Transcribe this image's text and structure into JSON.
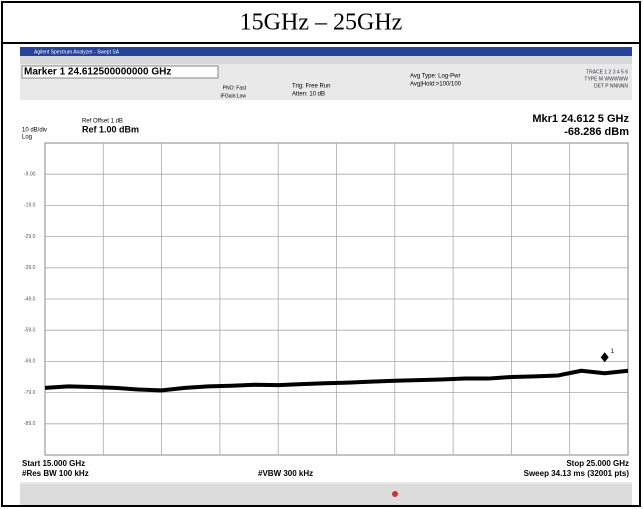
{
  "header": {
    "title": "15GHz – 25GHz"
  },
  "analyzer": {
    "window_title": "Agilent Spectrum Analyzer - Swept SA",
    "marker_field": "Marker 1 24.612500000000 GHz",
    "pno": "PNO: Fast",
    "ifgain": "IFGain:Low",
    "trig": "Trig: Free Run",
    "atten": "Atten: 10 dB",
    "avg_type": "Avg Type: Log-Pwr",
    "avg_hold": "Avg|Hold:>100/100",
    "trace": "TRACE 1 2 3 4 5 6",
    "type_row": "TYPE M WWWWW",
    "det_row": "DET P NNNNN",
    "ref_offset": "Ref Offset 1 dB",
    "ref": "Ref 1.00 dBm",
    "scale": "10 dB/div",
    "log": "Log",
    "mkr_freq": "Mkr1 24.612 5 GHz",
    "mkr_amp": "-68.286 dBm",
    "marker_num": "1",
    "start": "Start 15.000 GHz",
    "stop": "Stop 25.000 GHz",
    "rbw": "#Res BW 100 kHz",
    "vbw": "#VBW 300 kHz",
    "sweep": "Sweep 34.13 ms (32001 pts)"
  },
  "chart_data": {
    "type": "line",
    "xlim": [
      15,
      25
    ],
    "ylim": [
      -99,
      1
    ],
    "yticks": [
      {
        "value": -9,
        "label": "-9.00"
      },
      {
        "value": -19,
        "label": "-19.0"
      },
      {
        "value": -29,
        "label": "-29.0"
      },
      {
        "value": -39,
        "label": "-39.0"
      },
      {
        "value": -49,
        "label": "-49.0"
      },
      {
        "value": -59,
        "label": "-59.0"
      },
      {
        "value": -69,
        "label": "-69.0"
      },
      {
        "value": -79,
        "label": "-79.0"
      },
      {
        "value": -89,
        "label": "-89.0"
      }
    ],
    "x": [
      15,
      15.4,
      15.8,
      16.2,
      16.6,
      17,
      17.4,
      17.8,
      18.2,
      18.6,
      19,
      19.4,
      19.8,
      20.2,
      20.6,
      21,
      21.4,
      21.8,
      22.2,
      22.6,
      23,
      23.4,
      23.8,
      24.2,
      24.6,
      25
    ],
    "series": [
      {
        "color": "#000000",
        "values": [
          -77.5,
          -77,
          -77.2,
          -77.5,
          -78,
          -78.3,
          -77.5,
          -77,
          -76.8,
          -76.5,
          -76.6,
          -76.3,
          -76,
          -75.8,
          -75.5,
          -75.2,
          -75,
          -74.8,
          -74.5,
          -74.5,
          -74,
          -73.8,
          -73.5,
          -72,
          -72.8,
          -72
        ]
      }
    ]
  }
}
